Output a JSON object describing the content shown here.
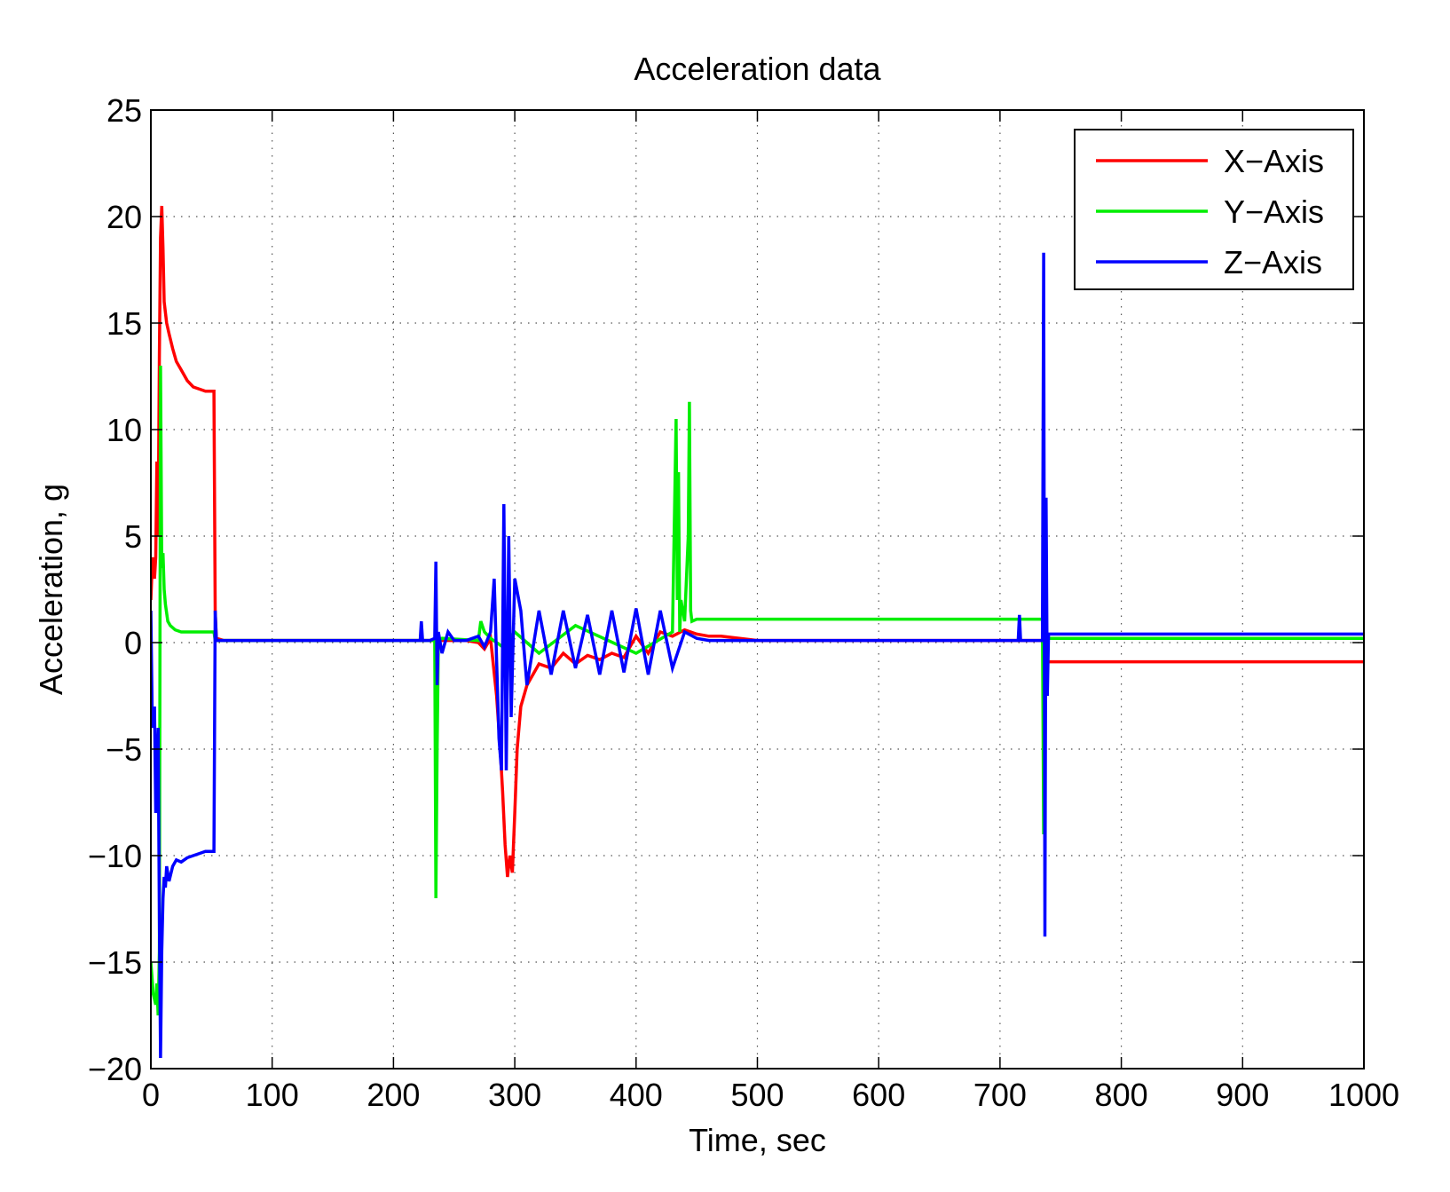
{
  "chart_data": {
    "type": "line",
    "title": "Acceleration data",
    "xlabel": "Time, sec",
    "ylabel": "Acceleration, g",
    "xlim": [
      0,
      1000
    ],
    "ylim": [
      -20,
      25
    ],
    "grid": true,
    "legend_position": "top-right",
    "x_ticks": [
      0,
      100,
      200,
      300,
      400,
      500,
      600,
      700,
      800,
      900,
      1000
    ],
    "y_ticks": [
      -20,
      -15,
      -10,
      -5,
      0,
      5,
      10,
      15,
      20,
      25
    ],
    "x_tick_labels": [
      "0",
      "100",
      "200",
      "300",
      "400",
      "500",
      "600",
      "700",
      "800",
      "900",
      "1000"
    ],
    "y_tick_labels": [
      "−20",
      "−15",
      "−10",
      "−5",
      "0",
      "5",
      "10",
      "15",
      "20",
      "25"
    ],
    "series": [
      {
        "name": "X−Axis",
        "color": "#ff0000",
        "x": [
          0,
          1,
          2,
          3,
          4,
          5,
          6,
          7,
          8,
          9,
          10,
          11,
          12,
          13,
          15,
          18,
          21,
          25,
          30,
          35,
          40,
          45,
          50,
          52,
          53,
          54,
          60,
          100,
          200,
          260,
          270,
          275,
          280,
          285,
          288,
          290,
          292,
          294,
          296,
          298,
          300,
          302,
          305,
          310,
          315,
          320,
          330,
          340,
          350,
          360,
          370,
          380,
          390,
          400,
          410,
          420,
          430,
          440,
          450,
          460,
          470,
          500,
          600,
          700,
          735,
          737,
          738,
          740,
          800,
          900,
          1000
        ],
        "y": [
          2.0,
          3.5,
          4.0,
          3.0,
          4.0,
          8.5,
          5.0,
          13.5,
          19.0,
          20.5,
          18.5,
          16.0,
          15.5,
          15.0,
          14.5,
          13.8,
          13.2,
          12.8,
          12.3,
          12.0,
          11.9,
          11.8,
          11.8,
          11.8,
          1.5,
          0.2,
          0.1,
          0.1,
          0.1,
          0.1,
          0.0,
          -0.3,
          0.2,
          -2.5,
          -5.0,
          -7.0,
          -9.5,
          -11.0,
          -10.0,
          -10.8,
          -8.0,
          -5.0,
          -3.0,
          -2.0,
          -1.5,
          -1.0,
          -1.2,
          -0.5,
          -1.0,
          -0.6,
          -0.8,
          -0.5,
          -0.7,
          0.3,
          -0.5,
          0.5,
          0.3,
          0.6,
          0.4,
          0.3,
          0.3,
          0.1,
          0.1,
          0.1,
          0.1,
          -0.8,
          -0.9,
          -0.9,
          -0.9,
          -0.9,
          -0.9
        ]
      },
      {
        "name": "Y−Axis",
        "color": "#00ee00",
        "x": [
          0,
          2,
          4,
          5,
          6,
          7,
          8,
          9,
          10,
          11,
          12,
          14,
          16,
          20,
          25,
          30,
          40,
          50,
          52,
          53,
          54,
          60,
          100,
          200,
          234,
          235,
          236,
          237,
          240,
          270,
          272,
          275,
          280,
          290,
          300,
          320,
          350,
          400,
          430,
          433,
          434,
          435,
          436,
          437,
          440,
          443,
          444,
          445,
          446,
          450,
          460,
          500,
          600,
          700,
          735,
          736,
          737,
          738,
          740,
          800,
          900,
          1000
        ],
        "y": [
          -15.0,
          -16.5,
          -17.0,
          -16.0,
          -17.5,
          -14.5,
          13.0,
          3.5,
          4.2,
          2.5,
          1.8,
          1.0,
          0.8,
          0.6,
          0.5,
          0.5,
          0.5,
          0.5,
          0.5,
          0.1,
          0.1,
          0.1,
          0.1,
          0.1,
          0.1,
          -12.0,
          -5.0,
          0.1,
          0.2,
          0.1,
          1.0,
          0.5,
          0.2,
          -0.2,
          0.5,
          -0.5,
          0.8,
          -0.5,
          0.5,
          10.5,
          2.0,
          8.0,
          0.5,
          2.0,
          1.0,
          5.0,
          11.3,
          1.5,
          1.0,
          1.1,
          1.1,
          1.1,
          1.1,
          1.1,
          1.1,
          -9.0,
          -3.0,
          0.2,
          0.2,
          0.2,
          0.2,
          0.2
        ]
      },
      {
        "name": "Z−Axis",
        "color": "#0000ff",
        "x": [
          0,
          1,
          2,
          3,
          4,
          5,
          6,
          7,
          8,
          9,
          10,
          11,
          12,
          13,
          15,
          18,
          21,
          25,
          30,
          35,
          40,
          45,
          50,
          52,
          53,
          54,
          65,
          100,
          200,
          222,
          223,
          224,
          230,
          234,
          235,
          236,
          237,
          240,
          245,
          250,
          260,
          270,
          275,
          280,
          283,
          285,
          287,
          289,
          291,
          293,
          295,
          297,
          300,
          305,
          310,
          320,
          330,
          340,
          350,
          360,
          370,
          380,
          390,
          400,
          410,
          420,
          430,
          440,
          450,
          460,
          500,
          600,
          700,
          715,
          716,
          717,
          730,
          735,
          736,
          737,
          738,
          739,
          740,
          800,
          900,
          1000
        ],
        "y": [
          1.5,
          -3.0,
          -4.0,
          -3.0,
          -8.0,
          -6.0,
          -4.0,
          -13.0,
          -19.5,
          -14.5,
          -12.0,
          -11.0,
          -11.5,
          -10.5,
          -11.2,
          -10.5,
          -10.2,
          -10.3,
          -10.1,
          -10.0,
          -9.9,
          -9.8,
          -9.8,
          -9.8,
          1.5,
          0.1,
          0.1,
          0.1,
          0.1,
          0.1,
          1.0,
          0.1,
          0.1,
          0.2,
          3.8,
          -2.0,
          0.5,
          -0.5,
          0.5,
          0.1,
          0.1,
          0.3,
          -0.2,
          0.5,
          3.0,
          -0.8,
          -4.5,
          -6.0,
          6.5,
          -6.0,
          5.0,
          -3.5,
          3.0,
          1.5,
          -2.0,
          1.5,
          -1.5,
          1.5,
          -1.2,
          1.3,
          -1.5,
          1.5,
          -1.4,
          1.6,
          -1.5,
          1.5,
          -1.2,
          0.5,
          0.2,
          0.1,
          0.1,
          0.1,
          0.1,
          0.1,
          1.3,
          0.1,
          0.1,
          0.1,
          18.3,
          -13.8,
          6.8,
          -2.5,
          0.4,
          0.4,
          0.4,
          0.4
        ]
      }
    ]
  }
}
